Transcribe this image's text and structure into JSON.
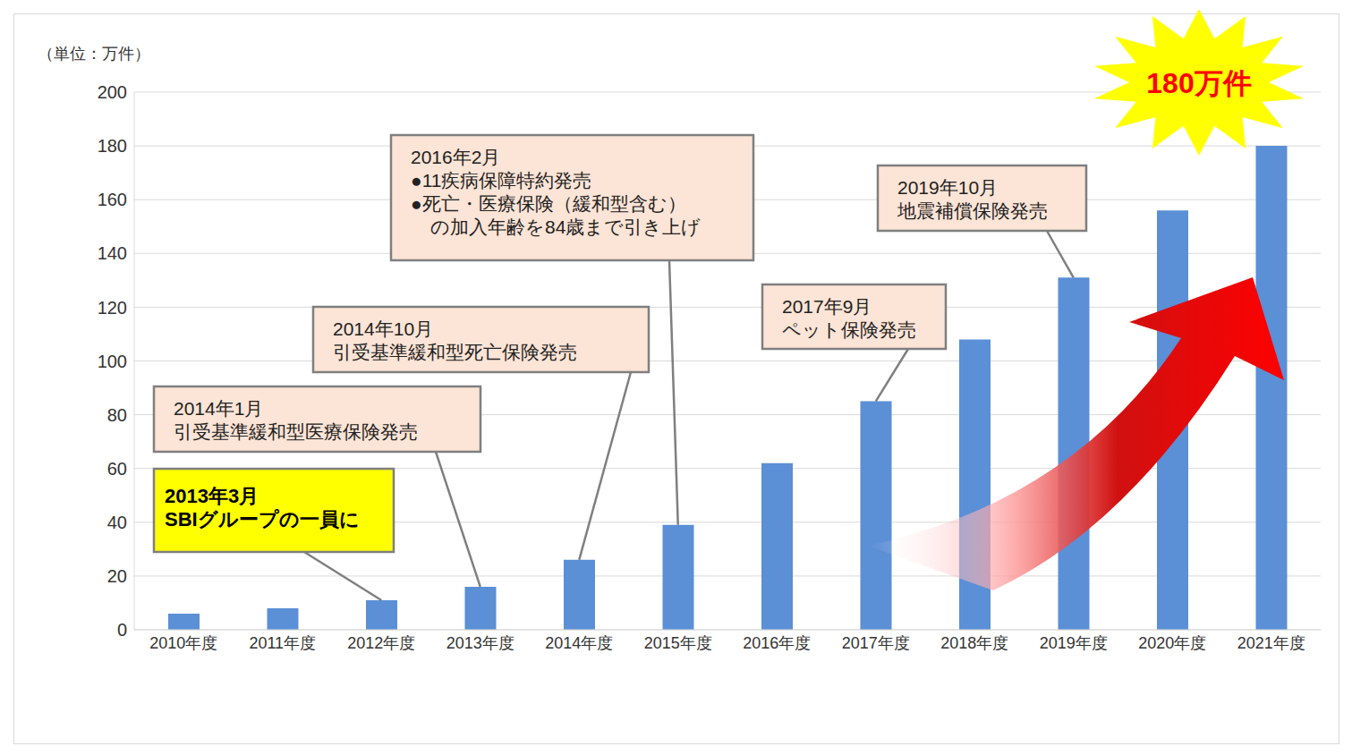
{
  "chart_data": {
    "type": "bar",
    "unit_label": "（単位：万件）",
    "callout": "180万件",
    "categories": [
      "2010年度",
      "2011年度",
      "2012年度",
      "2013年度",
      "2014年度",
      "2015年度",
      "2016年度",
      "2017年度",
      "2018年度",
      "2019年度",
      "2020年度",
      "2021年度"
    ],
    "values": [
      6,
      8,
      11,
      16,
      26,
      39,
      62,
      85,
      108,
      131,
      156,
      180
    ],
    "color": "#5b8fd6",
    "ylim": [
      0,
      200
    ],
    "yticks": [
      0,
      20,
      40,
      60,
      80,
      100,
      120,
      140,
      160,
      180,
      200
    ],
    "grid": true,
    "annotations": [
      {
        "lines": [
          "2013年3月",
          "SBIグループの一員に"
        ],
        "category": "2012年度"
      },
      {
        "lines": [
          "2014年1月",
          "引受基準緩和型医療保険発売"
        ],
        "category": "2013年度"
      },
      {
        "lines": [
          "2014年10月",
          "引受基準緩和型死亡保険発売"
        ],
        "category": "2014年度"
      },
      {
        "lines": [
          "2016年2月",
          "●11疾病保障特約発売",
          "●死亡・医療保険（緩和型含む）",
          "の加入年齢を84歳まで引き上げ"
        ],
        "category": "2015年度"
      },
      {
        "lines": [
          "2017年9月",
          "ペット保険発売"
        ],
        "category": "2017年度"
      },
      {
        "lines": [
          "2019年10月",
          "地震補償保険発売"
        ],
        "category": "2019年度"
      }
    ]
  }
}
